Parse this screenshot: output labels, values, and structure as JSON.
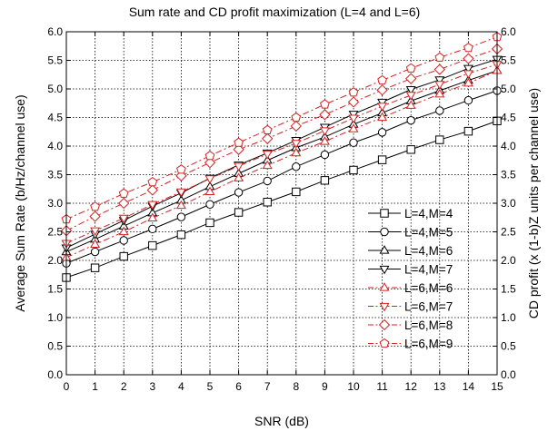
{
  "chart_data": {
    "type": "line",
    "title": "Sum rate and CD profit maximization (L=4 and L=6)",
    "xlabel": "SNR (dB)",
    "ylabel": "Average Sum Rate (b/Hz/channel use)",
    "y2label": "CD profit (x (1-b)Z units per channel use)",
    "xlim": [
      0,
      15
    ],
    "ylim": [
      0,
      6
    ],
    "y2lim": [
      0,
      6
    ],
    "x_ticks": [
      "0",
      "1",
      "2",
      "3",
      "4",
      "5",
      "6",
      "7",
      "8",
      "9",
      "10",
      "11",
      "12",
      "13",
      "14",
      "15"
    ],
    "y_ticks": [
      "0.0",
      "0.5",
      "1.0",
      "1.5",
      "2.0",
      "2.5",
      "3.0",
      "3.5",
      "4.0",
      "4.5",
      "5.0",
      "5.5",
      "6.0"
    ],
    "grid": true,
    "legend_position": "bottom-right",
    "x": [
      0,
      1,
      2,
      3,
      4,
      5,
      6,
      7,
      8,
      9,
      10,
      11,
      12,
      13,
      14,
      15
    ],
    "series": [
      {
        "name": "L=4,M=4",
        "marker": "square",
        "color": "#000000",
        "dash": "solid",
        "values": [
          1.7,
          1.87,
          2.07,
          2.26,
          2.45,
          2.66,
          2.84,
          3.02,
          3.2,
          3.4,
          3.58,
          3.76,
          3.94,
          4.11,
          4.26,
          4.44
        ]
      },
      {
        "name": "L=4,M=5",
        "marker": "circle",
        "color": "#000000",
        "dash": "solid",
        "values": [
          1.95,
          2.15,
          2.35,
          2.55,
          2.76,
          2.98,
          3.19,
          3.39,
          3.64,
          3.85,
          4.06,
          4.24,
          4.45,
          4.62,
          4.8,
          4.97
        ]
      },
      {
        "name": "L=4,M=6",
        "marker": "triangle-up",
        "color": "#000000",
        "dash": "solid",
        "values": [
          2.15,
          2.37,
          2.6,
          2.83,
          3.05,
          3.29,
          3.52,
          3.75,
          3.97,
          4.16,
          4.38,
          4.58,
          4.79,
          4.97,
          5.15,
          5.32
        ]
      },
      {
        "name": "L=4,M=7",
        "marker": "triangle-down",
        "color": "#000000",
        "dash": "solid",
        "values": [
          2.22,
          2.46,
          2.7,
          2.95,
          3.18,
          3.44,
          3.67,
          3.88,
          4.1,
          4.33,
          4.56,
          4.77,
          4.99,
          5.16,
          5.36,
          5.52
        ]
      },
      {
        "name": "L=6,M=6",
        "marker": "triangle-up",
        "color": "#d62020",
        "dash": "dashdot",
        "values": [
          2.05,
          2.28,
          2.5,
          2.74,
          2.96,
          3.2,
          3.44,
          3.66,
          3.88,
          4.08,
          4.3,
          4.5,
          4.71,
          4.91,
          5.1,
          5.32
        ]
      },
      {
        "name": "L=6,M=7",
        "marker": "triangle-down",
        "color": "#d62020",
        "dash": "dashdot",
        "values": [
          2.3,
          2.52,
          2.74,
          2.98,
          3.2,
          3.43,
          3.65,
          3.86,
          4.05,
          4.27,
          4.49,
          4.7,
          4.89,
          5.08,
          5.27,
          5.43
        ]
      },
      {
        "name": "L=6,M=8",
        "marker": "diamond",
        "color": "#d62020",
        "dash": "dashdot",
        "values": [
          2.52,
          2.77,
          3.0,
          3.23,
          3.48,
          3.71,
          3.94,
          4.13,
          4.35,
          4.55,
          4.77,
          4.98,
          5.18,
          5.34,
          5.53,
          5.7
        ]
      },
      {
        "name": "L=6,M=9",
        "marker": "pentagon",
        "color": "#d62020",
        "dash": "dashdot",
        "values": [
          2.72,
          2.94,
          3.17,
          3.37,
          3.59,
          3.83,
          4.06,
          4.28,
          4.5,
          4.73,
          4.94,
          5.15,
          5.36,
          5.55,
          5.72,
          5.91
        ]
      }
    ]
  }
}
